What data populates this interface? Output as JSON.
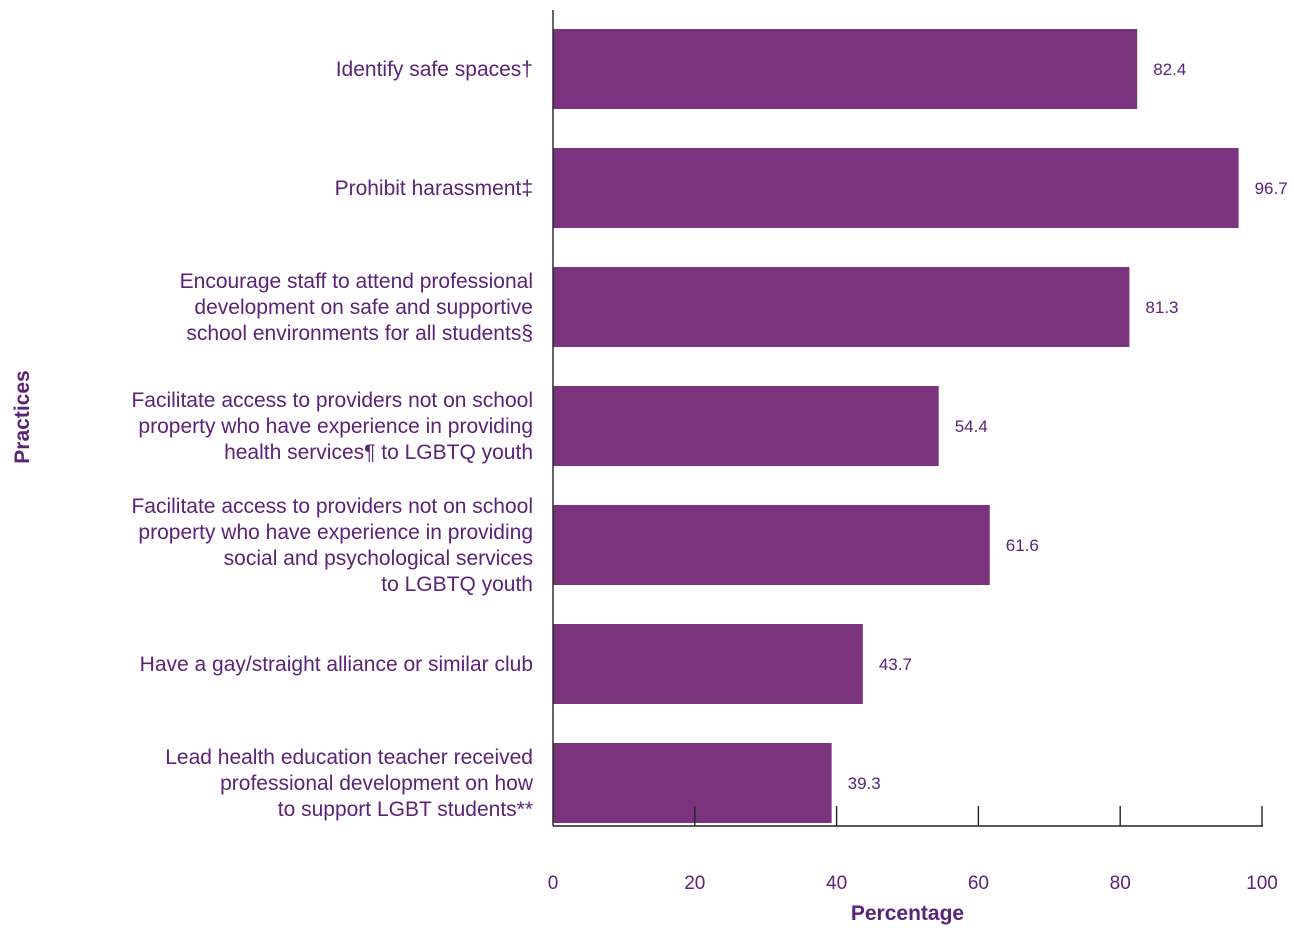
{
  "chart_data": {
    "type": "bar",
    "orientation": "horizontal",
    "categories": [
      [
        "Identify safe spaces†"
      ],
      [
        "Prohibit harassment‡"
      ],
      [
        "Encourage staff to attend professional",
        "development on safe and supportive",
        "school environments for all students§"
      ],
      [
        "Facilitate access to providers not on school",
        "property who have experience in providing",
        "health services¶ to LGBTQ youth"
      ],
      [
        "Facilitate access to providers not on school",
        "property who have experience in providing",
        "social and psychological services",
        "to LGBTQ youth"
      ],
      [
        "Have a gay/straight alliance or similar club"
      ],
      [
        "Lead health education teacher received",
        "professional development on how",
        "to support LGBT students**"
      ]
    ],
    "values": [
      82.4,
      96.7,
      81.3,
      54.4,
      61.6,
      43.7,
      39.3
    ],
    "value_labels": [
      "82.4",
      "96.7",
      "81.3",
      "54.4",
      "61.6",
      "43.7",
      "39.3"
    ],
    "xlabel": "Percentage",
    "ylabel": "Practices",
    "xlim": [
      0,
      100
    ],
    "xticks": [
      0,
      20,
      40,
      60,
      80,
      100
    ],
    "grid": false,
    "colors": {
      "bar": "#7b337e",
      "text": "#5b2378",
      "axis": "#222222"
    }
  }
}
